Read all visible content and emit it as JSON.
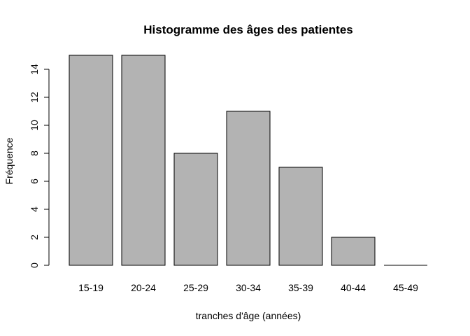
{
  "chart_data": {
    "type": "bar",
    "title": "Histogramme des âges des patientes",
    "xlabel": "tranches d'âge (années)",
    "ylabel": "Fréquence",
    "categories": [
      "15-19",
      "20-24",
      "25-29",
      "30-34",
      "35-39",
      "40-44",
      "45-49"
    ],
    "values": [
      15,
      15,
      8,
      11,
      7,
      2,
      0
    ],
    "yticks": [
      0,
      2,
      4,
      6,
      8,
      10,
      12,
      14
    ],
    "ylim": [
      0,
      15
    ],
    "grid": false,
    "bar_color": "#b3b3b3",
    "bar_stroke": "#000000"
  }
}
